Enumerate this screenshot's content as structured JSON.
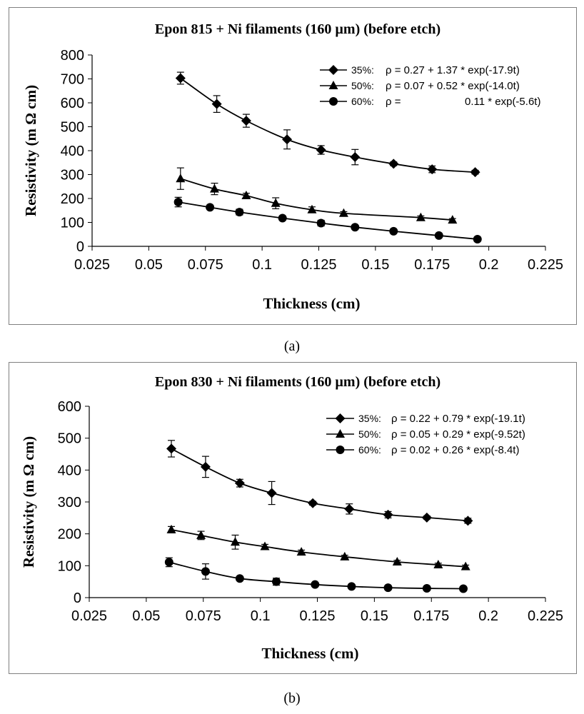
{
  "chart_data": [
    {
      "type": "line",
      "title": "Epon 815  + Ni filaments (160 µm) (before etch)",
      "xlabel": "Thickness (cm)",
      "ylabel": "Resistivity (m Ω cm)",
      "xlim": [
        0.025,
        0.225
      ],
      "ylim": [
        0,
        800
      ],
      "xticks": [
        "0.025",
        "0.05",
        "0.075",
        "0.1",
        "0.125",
        "0.15",
        "0.175",
        "0.2",
        "0.225"
      ],
      "yticks": [
        "0",
        "100",
        "200",
        "300",
        "400",
        "500",
        "600",
        "700",
        "800"
      ],
      "caption": "(a)",
      "legend_position": "top-right",
      "series": [
        {
          "name": "35%:",
          "marker": "diamond",
          "equation": "ρ = 0.27 + 1.37 * exp(-17.9t)",
          "x": [
            0.064,
            0.08,
            0.093,
            0.111,
            0.126,
            0.141,
            0.158,
            0.175,
            0.194
          ],
          "y": [
            703,
            595,
            525,
            447,
            403,
            373,
            345,
            322,
            310
          ],
          "err": [
            25,
            35,
            27,
            40,
            18,
            32,
            8,
            14,
            8
          ]
        },
        {
          "name": "50%:",
          "marker": "triangle",
          "equation": "ρ = 0.07 + 0.52 * exp(-14.0t)",
          "x": [
            0.064,
            0.079,
            0.093,
            0.106,
            0.122,
            0.136,
            0.17,
            0.184
          ],
          "y": [
            283,
            240,
            212,
            180,
            153,
            138,
            120,
            110
          ],
          "err": [
            45,
            24,
            10,
            23,
            12,
            7,
            7,
            6
          ]
        },
        {
          "name": "60%:",
          "marker": "circle",
          "equation_prefix": "ρ =",
          "equation": "0.11 * exp(-5.6t)",
          "x": [
            0.063,
            0.077,
            0.09,
            0.109,
            0.126,
            0.141,
            0.158,
            0.178,
            0.195
          ],
          "y": [
            185,
            163,
            143,
            118,
            97,
            80,
            63,
            45,
            30
          ],
          "err": [
            20,
            8,
            12,
            7,
            12,
            7,
            6,
            6,
            6
          ]
        }
      ]
    },
    {
      "type": "line",
      "title": "Epon 830 + Ni filaments (160 µm) (before etch)",
      "xlabel": "Thickness (cm)",
      "ylabel": "Resistivity (m Ω cm)",
      "xlim": [
        0.025,
        0.225
      ],
      "ylim": [
        0,
        600
      ],
      "xticks": [
        "0.025",
        "0.05",
        "0.075",
        "0.1",
        "0.125",
        "0.15",
        "0.175",
        "0.2",
        "0.225"
      ],
      "yticks": [
        "0",
        "100",
        "200",
        "300",
        "400",
        "500",
        "600"
      ],
      "caption": "(b)",
      "legend_position": "top-right",
      "series": [
        {
          "name": "35%:",
          "marker": "diamond",
          "equation": "ρ = 0.22 + 0.79 * exp(-19.1t)",
          "x": [
            0.061,
            0.076,
            0.091,
            0.105,
            0.123,
            0.139,
            0.156,
            0.173,
            0.191
          ],
          "y": [
            467,
            410,
            359,
            328,
            296,
            278,
            260,
            251,
            241
          ],
          "err": [
            26,
            33,
            12,
            36,
            6,
            16,
            10,
            5,
            8
          ]
        },
        {
          "name": "50%:",
          "marker": "triangle",
          "equation": "ρ = 0.05 + 0.29 * exp(-9.52t)",
          "x": [
            0.061,
            0.074,
            0.089,
            0.102,
            0.118,
            0.137,
            0.16,
            0.178,
            0.19
          ],
          "y": [
            213,
            195,
            174,
            160,
            143,
            128,
            112,
            103,
            97
          ],
          "err": [
            10,
            13,
            22,
            7,
            6,
            5,
            5,
            5,
            5
          ]
        },
        {
          "name": "60%:",
          "marker": "circle",
          "equation": "ρ = 0.02 + 0.26 * exp(-8.4t)",
          "x": [
            0.06,
            0.076,
            0.091,
            0.107,
            0.124,
            0.14,
            0.156,
            0.173,
            0.189
          ],
          "y": [
            111,
            82,
            60,
            50,
            41,
            35,
            31,
            29,
            28
          ],
          "err": [
            14,
            24,
            5,
            11,
            5,
            4,
            3,
            3,
            3
          ]
        }
      ]
    }
  ]
}
